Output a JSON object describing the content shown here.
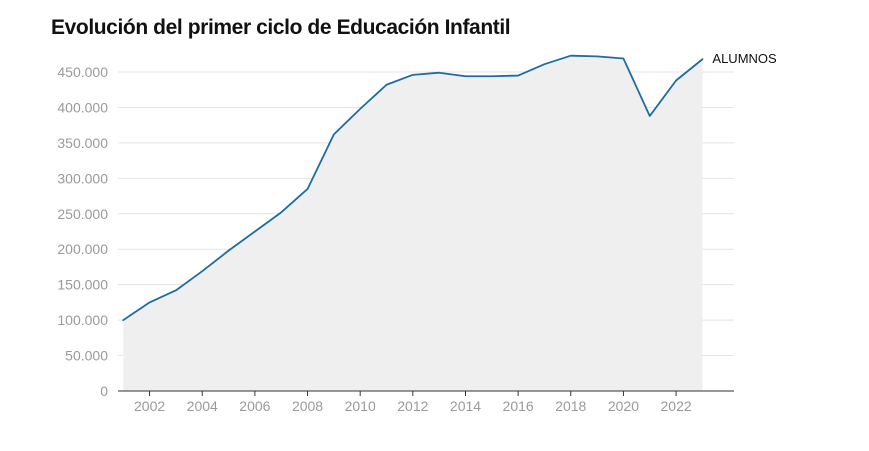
{
  "title": "Evolución del primer ciclo de Educación Infantil",
  "chart_data": {
    "type": "area",
    "title": "Evolución del primer ciclo de Educación Infantil",
    "xlabel": "",
    "ylabel": "",
    "x": [
      2001,
      2002,
      2003,
      2004,
      2005,
      2006,
      2007,
      2008,
      2009,
      2010,
      2011,
      2012,
      2013,
      2014,
      2015,
      2016,
      2017,
      2018,
      2019,
      2020,
      2021,
      2022,
      2023
    ],
    "series": [
      {
        "name": "ALUMNOS",
        "values": [
          100000,
          125000,
          142000,
          169000,
          198000,
          225000,
          252000,
          285000,
          362000,
          398000,
          432000,
          446000,
          449000,
          444000,
          444000,
          445000,
          461000,
          473000,
          472000,
          469000,
          388000,
          438000,
          468000
        ],
        "color": "#1f6c9e"
      }
    ],
    "fill_color": "#efefef",
    "xlim": [
      2000.8,
      2024.2
    ],
    "ylim": [
      0,
      450000
    ],
    "y_ticks": [
      0,
      50000,
      100000,
      150000,
      200000,
      250000,
      300000,
      350000,
      400000,
      450000
    ],
    "y_tick_labels": [
      "0",
      "50.000",
      "100.000",
      "150.000",
      "200.000",
      "250.000",
      "300.000",
      "350.000",
      "400.000",
      "450.000"
    ],
    "x_ticks": [
      2002,
      2004,
      2006,
      2008,
      2010,
      2012,
      2014,
      2016,
      2018,
      2020,
      2022
    ],
    "x_tick_labels": [
      "2002",
      "2004",
      "2006",
      "2008",
      "2010",
      "2012",
      "2014",
      "2016",
      "2018",
      "2020",
      "2022"
    ],
    "grid": true,
    "gridline_color": "#e4e4e4",
    "axis_color": "#333333",
    "tick_label_color": "#9a9a9a"
  }
}
